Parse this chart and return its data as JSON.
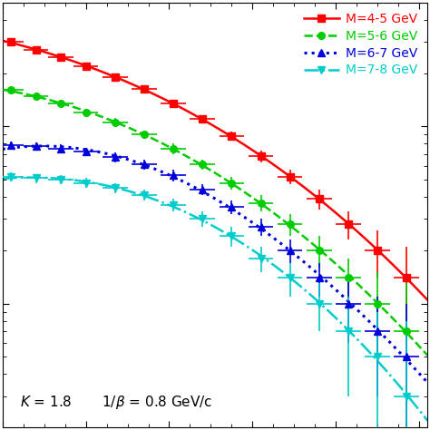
{
  "background_color": "#ffffff",
  "series": [
    {
      "label": "M=4-5 GeV",
      "color": "#ff0000",
      "linestyle": "-",
      "marker": "s",
      "markersize": 5.5,
      "linewidth": 1.8,
      "x": [
        0.02,
        0.08,
        0.14,
        0.2,
        0.27,
        0.34,
        0.41,
        0.48,
        0.55,
        0.62,
        0.69,
        0.76,
        0.83,
        0.9,
        0.97
      ],
      "y": [
        3.0,
        2.7,
        2.45,
        2.18,
        1.9,
        1.62,
        1.35,
        1.1,
        0.88,
        0.68,
        0.52,
        0.39,
        0.28,
        0.2,
        0.14
      ],
      "yerr": [
        0.12,
        0.11,
        0.1,
        0.09,
        0.08,
        0.07,
        0.06,
        0.05,
        0.05,
        0.05,
        0.05,
        0.05,
        0.05,
        0.06,
        0.07
      ],
      "xerr": [
        0.03,
        0.03,
        0.03,
        0.03,
        0.03,
        0.03,
        0.03,
        0.03,
        0.03,
        0.03,
        0.03,
        0.03,
        0.03,
        0.03,
        0.03
      ]
    },
    {
      "label": "M=5-6 GeV",
      "color": "#00cc00",
      "linestyle": "--",
      "marker": "o",
      "markersize": 5.5,
      "linewidth": 1.8,
      "x": [
        0.02,
        0.08,
        0.14,
        0.2,
        0.27,
        0.34,
        0.41,
        0.48,
        0.55,
        0.62,
        0.69,
        0.76,
        0.83,
        0.9,
        0.97
      ],
      "y": [
        1.6,
        1.48,
        1.34,
        1.2,
        1.05,
        0.9,
        0.75,
        0.61,
        0.48,
        0.37,
        0.28,
        0.2,
        0.14,
        0.1,
        0.07
      ],
      "yerr": [
        0.07,
        0.07,
        0.06,
        0.06,
        0.06,
        0.05,
        0.05,
        0.04,
        0.04,
        0.04,
        0.04,
        0.04,
        0.04,
        0.05,
        0.06
      ],
      "xerr": [
        0.03,
        0.03,
        0.03,
        0.03,
        0.03,
        0.03,
        0.03,
        0.03,
        0.03,
        0.03,
        0.03,
        0.03,
        0.03,
        0.03,
        0.03
      ]
    },
    {
      "label": "M=6-7 GeV",
      "color": "#0000dd",
      "linestyle": ":",
      "marker": "^",
      "markersize": 5.5,
      "linewidth": 2.2,
      "x": [
        0.02,
        0.08,
        0.14,
        0.2,
        0.27,
        0.34,
        0.41,
        0.48,
        0.55,
        0.62,
        0.69,
        0.76,
        0.83,
        0.9,
        0.97
      ],
      "y": [
        0.78,
        0.77,
        0.75,
        0.72,
        0.67,
        0.61,
        0.53,
        0.44,
        0.35,
        0.27,
        0.2,
        0.14,
        0.1,
        0.07,
        0.05
      ],
      "yerr": [
        0.04,
        0.04,
        0.04,
        0.04,
        0.04,
        0.04,
        0.04,
        0.03,
        0.03,
        0.03,
        0.03,
        0.03,
        0.04,
        0.04,
        0.05
      ],
      "xerr": [
        0.03,
        0.03,
        0.03,
        0.03,
        0.03,
        0.03,
        0.03,
        0.03,
        0.03,
        0.03,
        0.03,
        0.03,
        0.03,
        0.03,
        0.03
      ]
    },
    {
      "label": "M=7-8 GeV",
      "color": "#00cccc",
      "linestyle": "-.",
      "marker": "v",
      "markersize": 5.5,
      "linewidth": 1.8,
      "x": [
        0.02,
        0.08,
        0.14,
        0.2,
        0.27,
        0.34,
        0.41,
        0.48,
        0.55,
        0.62,
        0.69,
        0.76,
        0.83,
        0.9,
        0.97
      ],
      "y": [
        0.52,
        0.51,
        0.5,
        0.48,
        0.45,
        0.41,
        0.36,
        0.3,
        0.24,
        0.18,
        0.14,
        0.1,
        0.07,
        0.05,
        0.03
      ],
      "yerr": [
        0.03,
        0.03,
        0.03,
        0.03,
        0.03,
        0.03,
        0.03,
        0.03,
        0.03,
        0.03,
        0.03,
        0.03,
        0.04,
        0.04,
        0.05
      ],
      "xerr": [
        0.03,
        0.03,
        0.03,
        0.03,
        0.03,
        0.03,
        0.03,
        0.03,
        0.03,
        0.03,
        0.03,
        0.03,
        0.03,
        0.03,
        0.03
      ]
    }
  ],
  "xlim": [
    0.0,
    1.02
  ],
  "ylim_log": [
    0.02,
    5.0
  ],
  "tick_color": "#000000",
  "spine_color": "#000000",
  "legend_fontsize": 10,
  "annotation_text": "K = 1.8        1/β = 0.8 GeV/c",
  "annotation_fontsize": 11
}
